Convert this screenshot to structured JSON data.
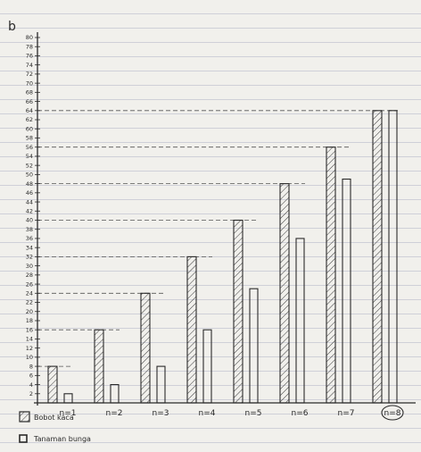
{
  "chart_data": {
    "type": "bar",
    "panel_label": "b",
    "categories": [
      "n=1",
      "n=2",
      "n=3",
      "n=4",
      "n=5",
      "n=6",
      "n=7",
      "n=8"
    ],
    "series": [
      {
        "name": "Bobot kaca",
        "pattern": "hatched",
        "values": [
          8,
          16,
          24,
          32,
          40,
          48,
          56,
          64
        ]
      },
      {
        "name": "Tanaman bunga",
        "pattern": "plain",
        "values": [
          2,
          4,
          8,
          16,
          25,
          36,
          49,
          64
        ]
      }
    ],
    "ylim": [
      0,
      80
    ],
    "yticks": [
      2,
      4,
      6,
      8,
      10,
      12,
      14,
      16,
      18,
      20,
      22,
      24,
      26,
      28,
      30,
      32,
      34,
      36,
      38,
      40,
      42,
      44,
      46,
      48,
      50,
      52,
      54,
      56,
      58,
      60,
      62,
      64,
      66,
      68,
      70,
      72,
      74,
      76,
      78,
      80
    ],
    "ytick_labels": [
      "2",
      "4",
      "6",
      "8",
      "10",
      "12",
      "14",
      "16",
      "18",
      "20",
      "22",
      "24",
      "26",
      "28",
      "30",
      "32",
      "34",
      "36",
      "38",
      "40",
      "42",
      "44",
      "46",
      "48",
      "50",
      "52",
      "54",
      "56",
      "58",
      "60",
      "62",
      "64",
      "66",
      "68",
      "70",
      "72",
      "74",
      "76",
      "78",
      "80"
    ],
    "legend": {
      "placement": "bottom-left"
    },
    "grid": false,
    "colors": {
      "ink": "#2a2a2a",
      "paper": "#f1f0ec"
    }
  }
}
